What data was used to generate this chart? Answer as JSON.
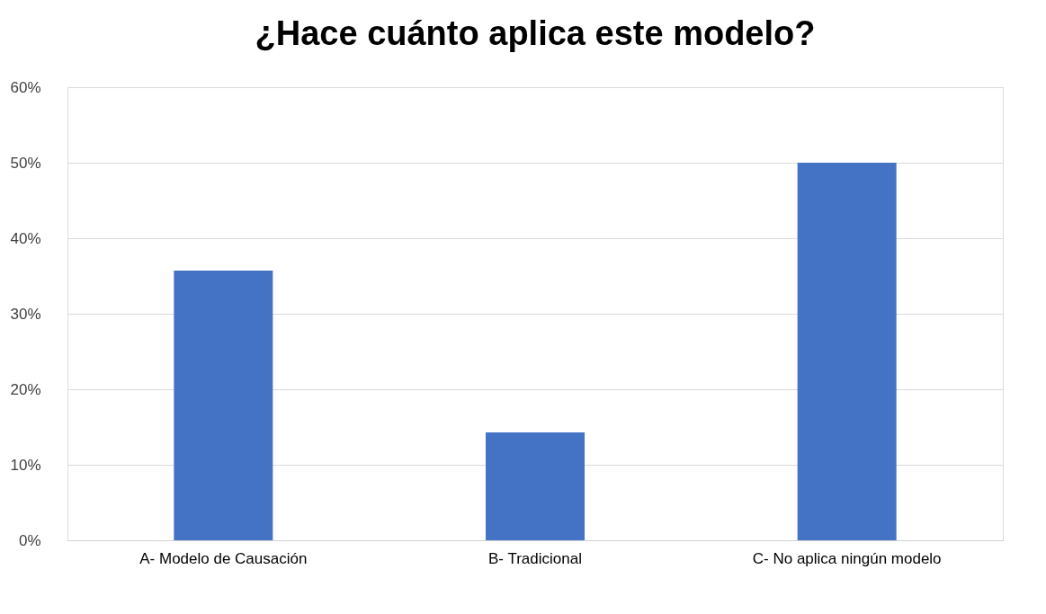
{
  "chart_data": {
    "type": "bar",
    "title": "¿Hace cuánto aplica este modelo?",
    "categories": [
      "A- Modelo de Causación",
      "B- Tradicional",
      "C- No aplica ningún modelo"
    ],
    "values": [
      35.7,
      14.3,
      50
    ],
    "color": "#4472c4",
    "ylim": [
      0,
      60
    ],
    "yticks": [
      {
        "value": 0,
        "label": "0%"
      },
      {
        "value": 10,
        "label": "10%"
      },
      {
        "value": 20,
        "label": "20%"
      },
      {
        "value": 30,
        "label": "30%"
      },
      {
        "value": 40,
        "label": "40%"
      },
      {
        "value": 50,
        "label": "50%"
      },
      {
        "value": 60,
        "label": "60%"
      }
    ],
    "grid": "y"
  }
}
